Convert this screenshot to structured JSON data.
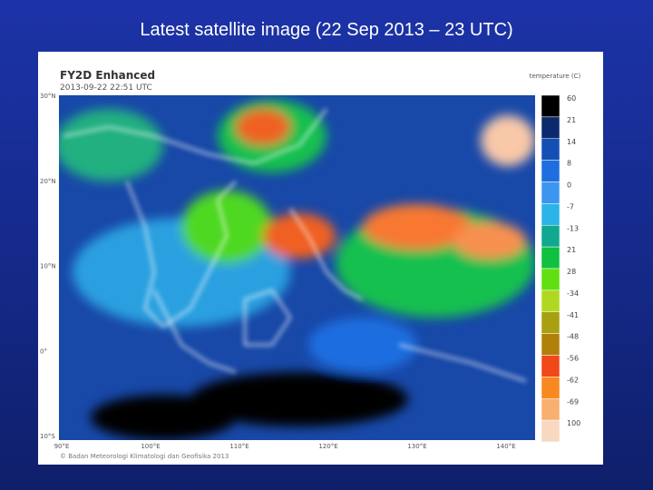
{
  "slide": {
    "title": "Latest satellite image (22 Sep 2013 – 23 UTC)"
  },
  "image": {
    "title": "FY2D Enhanced",
    "timestamp": "2013-09-22 22:51 UTC",
    "credit": "© Badan Meteorologi Klimatologi dan Geofisika 2013",
    "lat_labels": [
      "30°N",
      "20°N",
      "10°N",
      "0°",
      "10°S"
    ],
    "lon_labels": [
      "90°E",
      "100°E",
      "110°E",
      "120°E",
      "130°E",
      "140°E"
    ],
    "legend": {
      "title": "temperature (C)",
      "items": [
        {
          "label": "60",
          "color": "#000000"
        },
        {
          "label": "21",
          "color": "#0b2a6e"
        },
        {
          "label": "14",
          "color": "#1450b4"
        },
        {
          "label": "8",
          "color": "#1e6ee0"
        },
        {
          "label": "0",
          "color": "#3c96f0"
        },
        {
          "label": "-7",
          "color": "#2cb4e8"
        },
        {
          "label": "-13",
          "color": "#10a890"
        },
        {
          "label": "21",
          "color": "#10c040"
        },
        {
          "label": "28",
          "color": "#60e010"
        },
        {
          "label": "-34",
          "color": "#b0d820"
        },
        {
          "label": "-41",
          "color": "#a8a010"
        },
        {
          "label": "-48",
          "color": "#b08008"
        },
        {
          "label": "-56",
          "color": "#f04818"
        },
        {
          "label": "-62",
          "color": "#f88820"
        },
        {
          "label": "-69",
          "color": "#f8b070"
        },
        {
          "label": "100",
          "color": "#f8d8c0"
        }
      ]
    }
  }
}
